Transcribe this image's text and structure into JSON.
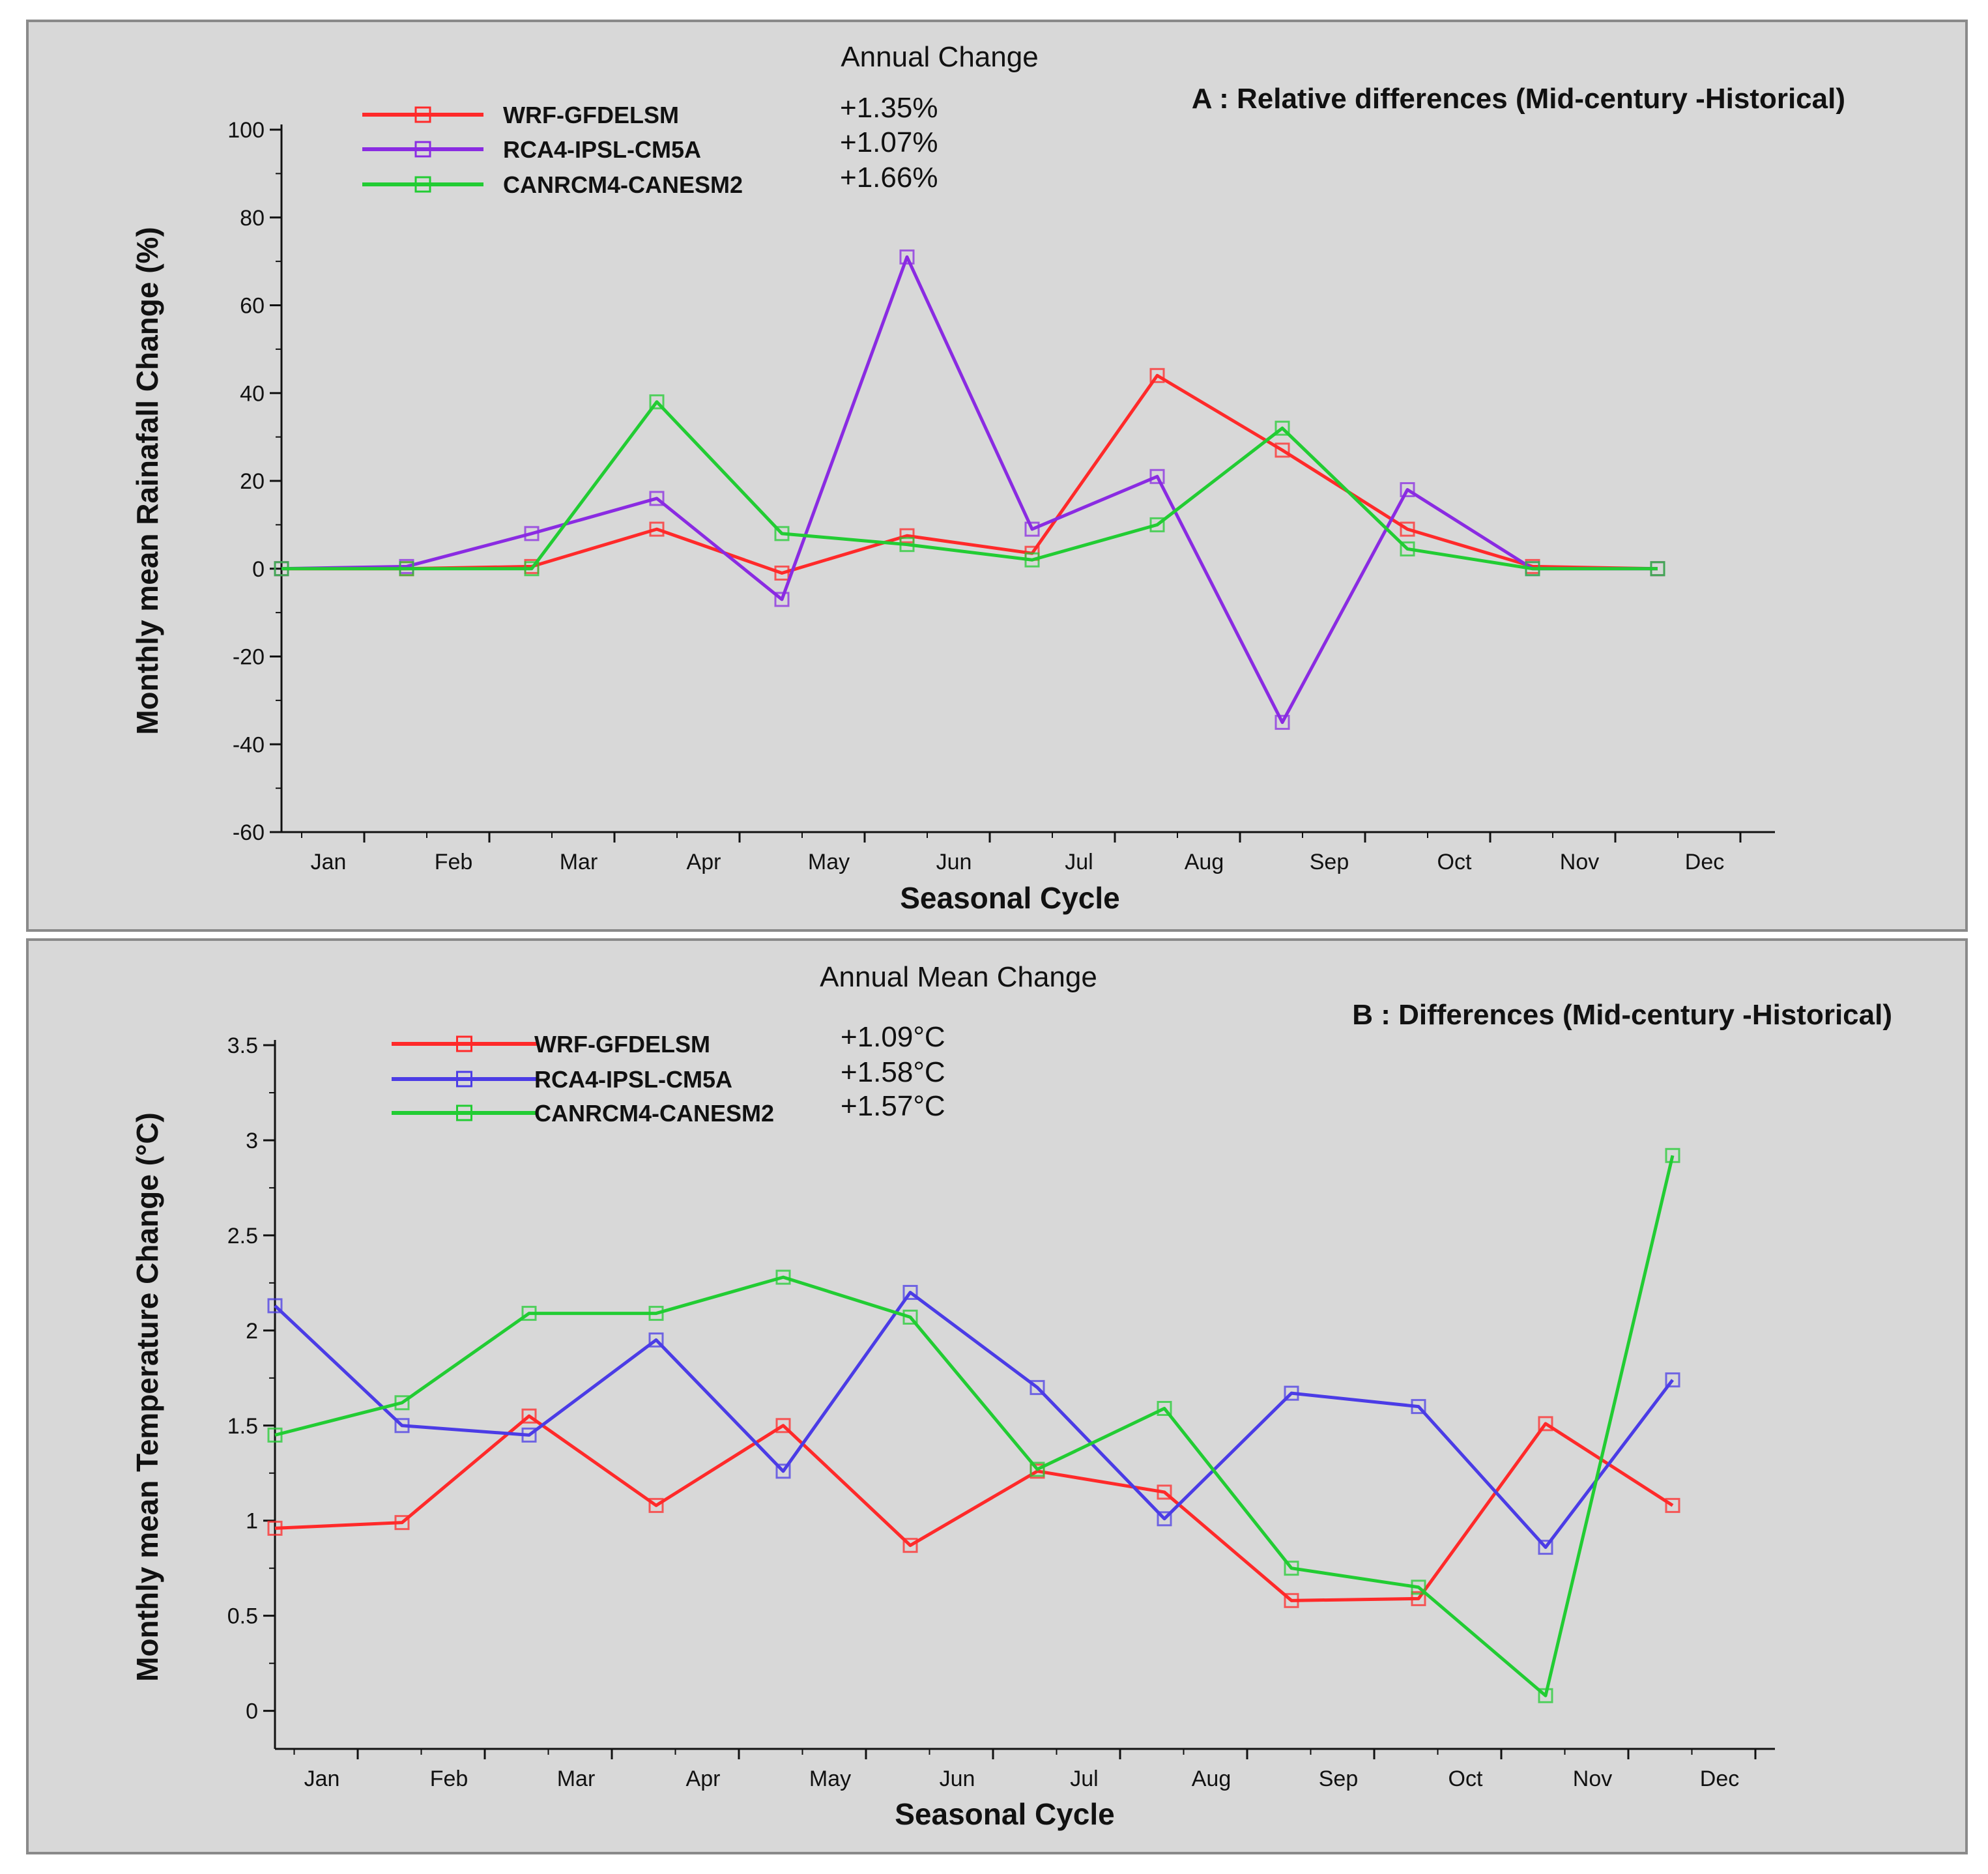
{
  "chart_data": [
    {
      "type": "line",
      "title": "A : Relative differences (Mid-century -Historical)",
      "subtitle": "Annual Change",
      "xlabel": "Seasonal Cycle",
      "ylabel": "Monthly mean Rainafall Change (%)",
      "categories": [
        "Jan",
        "Feb",
        "Mar",
        "Apr",
        "May",
        "Jun",
        "Jul",
        "Aug",
        "Sep",
        "Oct",
        "Nov",
        "Dec"
      ],
      "ylim": [
        -60,
        100
      ],
      "yticks": [
        -60,
        -40,
        -20,
        0,
        20,
        40,
        60,
        80,
        100
      ],
      "grid": false,
      "legend_position": "top-left",
      "series": [
        {
          "name": "WRF-GFDELSM",
          "annual": "+1.35%",
          "color": "#ff2a2a",
          "values": [
            0,
            0,
            0.5,
            9,
            -1,
            7.5,
            3.5,
            44,
            27,
            9,
            0.5,
            0
          ]
        },
        {
          "name": "RCA4-IPSL-CM5A",
          "annual": "+1.07%",
          "color": "#8a2be2",
          "values": [
            0,
            0.5,
            8,
            16,
            -7,
            71,
            9,
            21,
            -35,
            18,
            0,
            0
          ]
        },
        {
          "name": "CANRCM4-CANESM2",
          "annual": "+1.66%",
          "color": "#22cc33",
          "values": [
            0,
            0,
            0,
            38,
            8,
            5.5,
            2,
            10,
            32,
            4.5,
            0,
            0
          ]
        }
      ]
    },
    {
      "type": "line",
      "title": "B : Differences (Mid-century -Historical)",
      "subtitle": "Annual Mean Change",
      "xlabel": "Seasonal Cycle",
      "ylabel": "Monthly mean Temperature Change (°C)",
      "categories": [
        "Jan",
        "Feb",
        "Mar",
        "Apr",
        "May",
        "Jun",
        "Jul",
        "Aug",
        "Sep",
        "Oct",
        "Nov",
        "Dec"
      ],
      "ylim": [
        -0.2,
        3.5
      ],
      "yticks": [
        0,
        0.5,
        1,
        1.5,
        2,
        2.5,
        3,
        3.5
      ],
      "ytick_labels": [
        "0",
        "0.5",
        "1",
        "1.5",
        "2",
        "2.5",
        "3",
        "3.5"
      ],
      "grid": false,
      "legend_position": "top-left",
      "series": [
        {
          "name": "WRF-GFDELSM",
          "annual": "+1.09°C",
          "color": "#ff2a2a",
          "values": [
            0.96,
            0.99,
            1.55,
            1.08,
            1.5,
            0.87,
            1.26,
            1.15,
            0.58,
            0.59,
            1.51,
            1.08
          ]
        },
        {
          "name": "RCA4-IPSL-CM5A",
          "annual": "+1.58°C",
          "color": "#4b3ce6",
          "values": [
            2.13,
            1.5,
            1.45,
            1.95,
            1.26,
            2.2,
            1.7,
            1.01,
            1.67,
            1.6,
            0.86,
            1.74
          ]
        },
        {
          "name": "CANRCM4-CANESM2",
          "annual": "+1.57°C",
          "color": "#22cc33",
          "values": [
            1.45,
            1.62,
            2.09,
            2.09,
            2.28,
            2.07,
            1.27,
            1.59,
            0.75,
            0.65,
            0.08,
            2.92
          ]
        }
      ]
    }
  ]
}
